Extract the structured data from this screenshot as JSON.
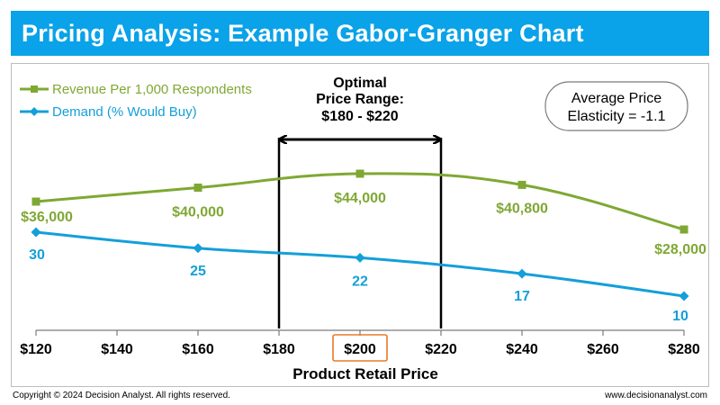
{
  "header": {
    "title": "Pricing Analysis: Example Gabor-Granger Chart"
  },
  "footer": {
    "copyright": "Copyright © 2024 Decision Analyst. All rights reserved.",
    "website": "www.decisionanalyst.com"
  },
  "chart_data": {
    "type": "line",
    "title": "Pricing Analysis: Example Gabor-Granger Chart",
    "xlabel": "Product Retail Price",
    "ylabel": "",
    "xlim": [
      120,
      280
    ],
    "x_ticks": [
      {
        "value": 120,
        "label": "$120"
      },
      {
        "value": 140,
        "label": "$140"
      },
      {
        "value": 160,
        "label": "$160"
      },
      {
        "value": 180,
        "label": "$180"
      },
      {
        "value": 200,
        "label": "$200"
      },
      {
        "value": 220,
        "label": "$220"
      },
      {
        "value": 240,
        "label": "$240"
      },
      {
        "value": 260,
        "label": "$260"
      },
      {
        "value": 280,
        "label": "$280"
      }
    ],
    "highlighted_tick": 200,
    "grid": false,
    "legend_placement": "top-left",
    "series": [
      {
        "name": "Revenue Per 1,000 Respondents",
        "color": "#7fa833",
        "marker": "square",
        "x": [
          120,
          160,
          200,
          240,
          280
        ],
        "values": [
          36000,
          40000,
          44000,
          40800,
          28000
        ],
        "labels": [
          "$36,000",
          "$40,000",
          "$44,000",
          "$40,800",
          "$28,000"
        ]
      },
      {
        "name": "Demand (% Would Buy)",
        "color": "#149fd9",
        "marker": "diamond",
        "x": [
          120,
          160,
          200,
          240,
          280
        ],
        "values": [
          30,
          25,
          22,
          17,
          10
        ],
        "labels": [
          "30",
          "25",
          "22",
          "17",
          "10"
        ]
      }
    ],
    "annotations": {
      "optimal_range": {
        "lines": [
          "Optimal",
          "Price Range:",
          "$180 - $220"
        ],
        "from": 180,
        "to": 220
      },
      "elasticity": {
        "lines": [
          "Average Price",
          "Elasticity = -1.1"
        ],
        "value": -1.1
      }
    }
  },
  "colors": {
    "title_bar": "#0aa2e8",
    "highlight_box": "#e87a2a"
  }
}
